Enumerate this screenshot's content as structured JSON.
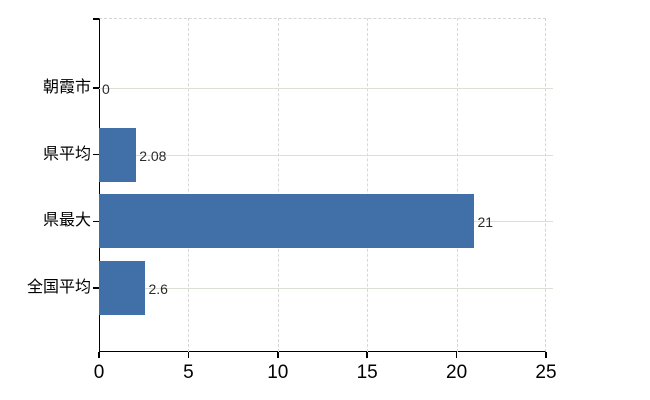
{
  "chart_data": {
    "type": "bar",
    "orientation": "horizontal",
    "title": "",
    "xlabel": "",
    "ylabel": "",
    "categories": [
      "朝霞市",
      "県平均",
      "県最大",
      "全国平均"
    ],
    "values": [
      0,
      2.08,
      21,
      2.6
    ],
    "value_labels": [
      "0",
      "2.08",
      "21",
      "2.6"
    ],
    "x_tick_values": [
      0,
      5,
      10,
      15,
      20,
      25
    ],
    "x_tick_labels": [
      "0",
      "5",
      "10",
      "15",
      "20",
      "25"
    ],
    "xlim": [
      0,
      25
    ],
    "grid": true,
    "legend": false,
    "colors": {
      "bar": "#4170a8",
      "axis": "#000000",
      "horizontal_grid": "#dae0d6",
      "vertical_grid": "#d8d8d8",
      "text": "#000000",
      "value_text": "#2b2b2b",
      "background": "#ffffff"
    }
  }
}
